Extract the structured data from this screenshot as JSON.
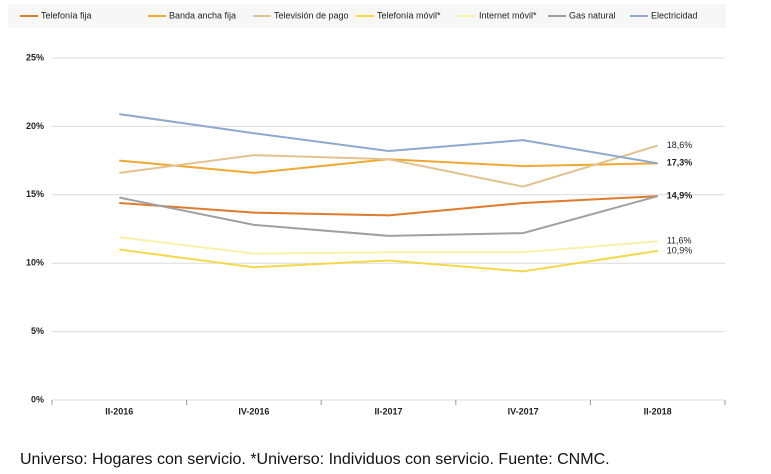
{
  "chart_data": {
    "type": "line",
    "categories": [
      "II-2016",
      "IV-2016",
      "II-2017",
      "IV-2017",
      "II-2018"
    ],
    "series": [
      {
        "name": "Telefonía fija",
        "color": "#e07b2a",
        "values": [
          14.4,
          13.7,
          13.5,
          14.4,
          14.9
        ],
        "value_labels": [
          null,
          null,
          null,
          null,
          "14,9%"
        ]
      },
      {
        "name": "Banda ancha fija",
        "color": "#f0a830",
        "values": [
          17.5,
          16.6,
          17.6,
          17.1,
          17.3
        ],
        "value_labels": [
          null,
          null,
          null,
          null,
          "17,3%"
        ]
      },
      {
        "name": "Televisión de pago",
        "color": "#e2c28e",
        "values": [
          16.6,
          17.9,
          17.6,
          15.6,
          18.6
        ],
        "value_labels": [
          null,
          null,
          null,
          null,
          "18,6%"
        ]
      },
      {
        "name": "Telefonía móvil*",
        "color": "#f5d84a",
        "values": [
          11.0,
          9.7,
          10.2,
          9.4,
          10.9
        ],
        "value_labels": [
          null,
          null,
          null,
          null,
          "10,9%"
        ]
      },
      {
        "name": "Internet móvil*",
        "color": "#faf0a8",
        "values": [
          11.9,
          10.7,
          10.8,
          10.8,
          11.6
        ],
        "value_labels": [
          null,
          null,
          null,
          null,
          "11,6%"
        ]
      },
      {
        "name": "Gas natural",
        "color": "#a0a0a0",
        "values": [
          14.8,
          12.8,
          12.0,
          12.2,
          14.9
        ],
        "value_labels": [
          null,
          null,
          null,
          null,
          null
        ]
      },
      {
        "name": "Electricidad",
        "color": "#8ea9d0",
        "values": [
          20.9,
          19.5,
          18.2,
          19.0,
          17.3
        ],
        "value_labels": [
          null,
          null,
          null,
          null,
          null
        ]
      }
    ],
    "ylim": [
      0,
      25
    ],
    "yticks": [
      {
        "value": 0,
        "label": "0%"
      },
      {
        "value": 5,
        "label": "5%"
      },
      {
        "value": 10,
        "label": "10%"
      },
      {
        "value": 15,
        "label": "15%"
      },
      {
        "value": 20,
        "label": "20%"
      },
      {
        "value": 25,
        "label": "25%"
      }
    ],
    "grid": true,
    "bold_labels": [
      "14,9%",
      "17,3%"
    ],
    "footnote": "Universo: Hogares con servicio. *Universo: Individuos con servicio. Fuente: CNMC."
  }
}
